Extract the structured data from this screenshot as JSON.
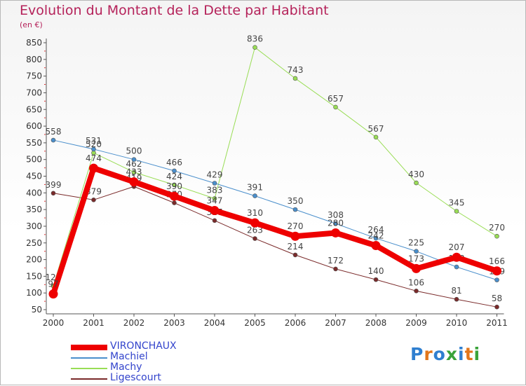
{
  "title": "Evolution du Montant de la Dette par Habitant",
  "unit": "(en €)",
  "logo": {
    "text": "Proxiti",
    "colors": [
      "#2f7fd0",
      "#e2761b",
      "#2f7fd0",
      "#3aa33a",
      "#2f7fd0",
      "#e2761b",
      "#3aa33a"
    ]
  },
  "chart_data": {
    "type": "line",
    "x": [
      "2000",
      "2001",
      "2002",
      "2003",
      "2004",
      "2005",
      "2006",
      "2007",
      "2008",
      "2009",
      "2010",
      "2011"
    ],
    "ylim": [
      50,
      850
    ],
    "yticks": [
      50,
      100,
      150,
      200,
      250,
      300,
      350,
      400,
      450,
      500,
      550,
      600,
      650,
      700,
      750,
      800,
      850
    ],
    "grid": false,
    "legend_position": "bottom-left",
    "series": [
      {
        "name": "Ligescourt",
        "color": "#7a2a2a",
        "width": 1,
        "values": [
          399,
          379,
          419,
          370,
          317,
          263,
          214,
          172,
          140,
          106,
          81,
          58
        ]
      },
      {
        "name": "Machy",
        "color": "#99dd55",
        "width": 1,
        "values": [
          121,
          520,
          462,
          424,
          383,
          836,
          743,
          657,
          567,
          430,
          345,
          270
        ]
      },
      {
        "name": "Machiel",
        "color": "#4a8fcc",
        "width": 1,
        "values": [
          558,
          531,
          500,
          466,
          429,
          391,
          350,
          308,
          264,
          225,
          178,
          139
        ]
      },
      {
        "name": "VIRONCHAUX",
        "color": "#ee0000",
        "width": 8,
        "values": [
          97,
          474,
          433,
          390,
          347,
          310,
          270,
          280,
          242,
          173,
          207,
          166
        ]
      }
    ],
    "legend": [
      "VIRONCHAUX",
      "Machiel",
      "Machy",
      "Ligescourt"
    ]
  }
}
